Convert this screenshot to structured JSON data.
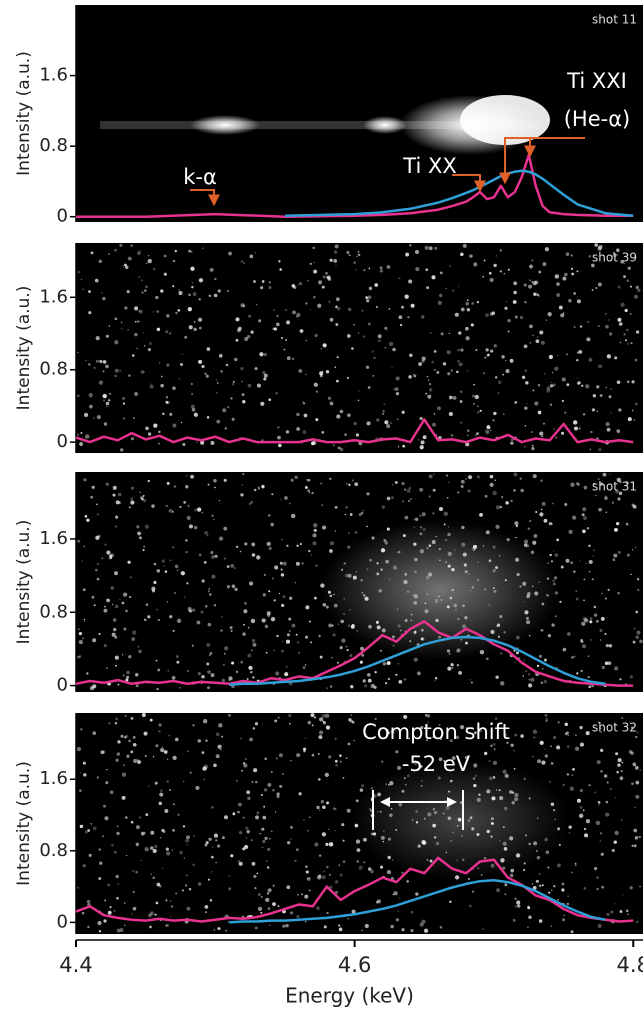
{
  "chart_data": [
    {
      "type": "line",
      "title": "shot 11",
      "y_label": "Intensity (a.u.)",
      "annotations": [
        "Ti XXI",
        "(He-α)",
        "Ti XX",
        "k-α"
      ],
      "xlim": [
        4.4,
        4.807
      ],
      "ylim": [
        -0.06,
        2.4
      ],
      "yticks": [
        0,
        0.8,
        1.6
      ],
      "x": [
        4.4,
        4.45,
        4.5,
        4.55,
        4.6,
        4.62,
        4.64,
        4.66,
        4.67,
        4.68,
        4.685,
        4.69,
        4.695,
        4.7,
        4.705,
        4.71,
        4.715,
        4.72,
        4.725,
        4.73,
        4.735,
        4.74,
        4.75,
        4.76,
        4.78,
        4.8
      ],
      "series": [
        {
          "color": "#e8328f",
          "values": [
            0,
            0,
            0.03,
            0,
            0.01,
            0.02,
            0.04,
            0.08,
            0.12,
            0.17,
            0.22,
            0.28,
            0.2,
            0.22,
            0.35,
            0.22,
            0.28,
            0.45,
            0.7,
            0.35,
            0.12,
            0.05,
            0.03,
            0.02,
            0.01,
            0.01
          ]
        },
        {
          "color": "#2f9fd8",
          "values": [
            null,
            null,
            null,
            0.01,
            0.03,
            0.05,
            0.09,
            0.16,
            0.21,
            0.27,
            0.3,
            0.34,
            0.38,
            0.42,
            0.46,
            0.49,
            0.51,
            0.52,
            0.51,
            0.48,
            0.43,
            0.37,
            0.25,
            0.14,
            0.04,
            0.01
          ]
        }
      ]
    },
    {
      "type": "line",
      "title": "shot 39",
      "y_label": "Intensity (a.u.)",
      "xlim": [
        4.4,
        4.807
      ],
      "ylim": [
        -0.12,
        2.2
      ],
      "yticks": [
        0,
        0.8,
        1.6
      ],
      "x": [
        4.4,
        4.41,
        4.42,
        4.43,
        4.44,
        4.45,
        4.46,
        4.47,
        4.48,
        4.49,
        4.5,
        4.51,
        4.52,
        4.53,
        4.54,
        4.55,
        4.56,
        4.57,
        4.58,
        4.59,
        4.6,
        4.61,
        4.62,
        4.63,
        4.64,
        4.65,
        4.66,
        4.67,
        4.68,
        4.69,
        4.7,
        4.71,
        4.72,
        4.73,
        4.74,
        4.75,
        4.76,
        4.77,
        4.78,
        4.79,
        4.8
      ],
      "series": [
        {
          "color": "#e8328f",
          "values": [
            0.05,
            0,
            0.06,
            0.02,
            0.1,
            0.03,
            0.07,
            0,
            0.05,
            0.02,
            0.06,
            0,
            0.04,
            0,
            0,
            0,
            0,
            0.03,
            0,
            0,
            0.02,
            0,
            0.03,
            0.04,
            0,
            0.25,
            0.02,
            0.03,
            0,
            0.05,
            0.02,
            0.08,
            0,
            0.04,
            0.02,
            0.2,
            0,
            0.03,
            0,
            0.02,
            0
          ]
        }
      ]
    },
    {
      "type": "line",
      "title": "shot 31",
      "y_label": "Intensity (a.u.)",
      "xlim": [
        4.4,
        4.807
      ],
      "ylim": [
        -0.07,
        2.33
      ],
      "yticks": [
        0,
        0.8,
        1.6
      ],
      "x": [
        4.4,
        4.41,
        4.42,
        4.43,
        4.44,
        4.45,
        4.46,
        4.47,
        4.48,
        4.49,
        4.5,
        4.51,
        4.52,
        4.53,
        4.54,
        4.55,
        4.56,
        4.57,
        4.58,
        4.59,
        4.6,
        4.61,
        4.62,
        4.63,
        4.64,
        4.65,
        4.66,
        4.67,
        4.68,
        4.69,
        4.7,
        4.71,
        4.72,
        4.73,
        4.74,
        4.75,
        4.76,
        4.77,
        4.78,
        4.79,
        4.8
      ],
      "series": [
        {
          "color": "#e8328f",
          "values": [
            0.02,
            0.05,
            0.03,
            0.06,
            0.02,
            0.04,
            0.03,
            0.05,
            0.02,
            0.04,
            0.03,
            0.02,
            0.05,
            0.03,
            0.08,
            0.06,
            0.1,
            0.08,
            0.15,
            0.22,
            0.3,
            0.42,
            0.55,
            0.48,
            0.62,
            0.7,
            0.58,
            0.52,
            0.62,
            0.55,
            0.45,
            0.38,
            0.25,
            0.15,
            0.1,
            0.05,
            0.03,
            0.02,
            0.01,
            0,
            0
          ]
        },
        {
          "color": "#2f9fd8",
          "values": [
            null,
            null,
            null,
            null,
            null,
            null,
            null,
            null,
            null,
            null,
            null,
            0.01,
            0.02,
            0.02,
            0.03,
            0.04,
            0.05,
            0.07,
            0.09,
            0.12,
            0.16,
            0.21,
            0.27,
            0.33,
            0.39,
            0.45,
            0.49,
            0.52,
            0.53,
            0.52,
            0.49,
            0.44,
            0.37,
            0.29,
            0.21,
            0.14,
            0.08,
            0.04,
            0.02,
            null,
            null
          ]
        }
      ]
    },
    {
      "type": "line",
      "title": "shot 32",
      "y_label": "Intensity (a.u.)",
      "x_label": "Energy (keV)",
      "annotations": [
        "Compton shift",
        "-52 eV"
      ],
      "xlim": [
        4.4,
        4.807
      ],
      "ylim": [
        -0.13,
        2.34
      ],
      "yticks": [
        0,
        0.8,
        1.6
      ],
      "xticks": [
        4.4,
        4.6,
        4.8
      ],
      "x": [
        4.4,
        4.41,
        4.42,
        4.43,
        4.44,
        4.45,
        4.46,
        4.47,
        4.48,
        4.49,
        4.5,
        4.51,
        4.52,
        4.53,
        4.54,
        4.55,
        4.56,
        4.57,
        4.58,
        4.59,
        4.6,
        4.61,
        4.62,
        4.63,
        4.64,
        4.65,
        4.66,
        4.67,
        4.68,
        4.69,
        4.7,
        4.71,
        4.72,
        4.73,
        4.74,
        4.75,
        4.76,
        4.77,
        4.78,
        4.79,
        4.8
      ],
      "series": [
        {
          "color": "#e8328f",
          "values": [
            0.12,
            0.18,
            0.08,
            0.05,
            0.03,
            0.02,
            0.04,
            0.02,
            0.03,
            0.01,
            0.03,
            0.05,
            0.04,
            0.06,
            0.1,
            0.15,
            0.2,
            0.18,
            0.4,
            0.25,
            0.35,
            0.42,
            0.5,
            0.45,
            0.6,
            0.55,
            0.72,
            0.6,
            0.55,
            0.68,
            0.7,
            0.5,
            0.42,
            0.3,
            0.25,
            0.15,
            0.08,
            0.05,
            0.03,
            0.01,
            0.02
          ]
        },
        {
          "color": "#2f9fd8",
          "values": [
            null,
            null,
            null,
            null,
            null,
            null,
            null,
            null,
            null,
            null,
            null,
            0,
            0.01,
            0.01,
            0.02,
            0.02,
            0.03,
            0.04,
            0.05,
            0.07,
            0.09,
            0.12,
            0.15,
            0.19,
            0.24,
            0.29,
            0.34,
            0.39,
            0.43,
            0.46,
            0.47,
            0.45,
            0.41,
            0.35,
            0.27,
            0.19,
            0.12,
            0.06,
            0.03,
            null,
            null
          ]
        }
      ]
    }
  ]
}
